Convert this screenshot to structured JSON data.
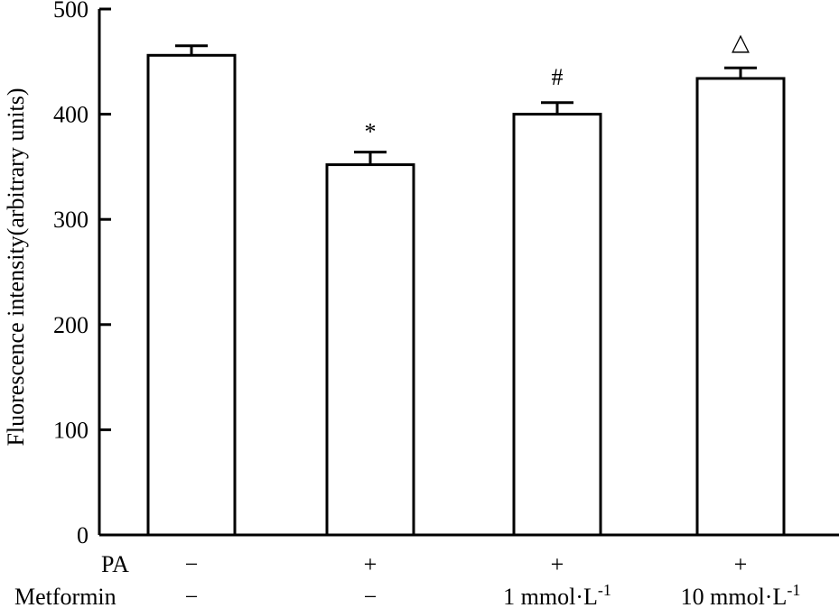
{
  "chart_data": {
    "type": "bar",
    "title": "",
    "xlabel": "",
    "ylabel": "Fluorescence intensity(arbitrary units)",
    "ylim": [
      0,
      500
    ],
    "yticks": [
      0,
      100,
      200,
      300,
      400,
      500
    ],
    "grid": false,
    "values": [
      456,
      352,
      400,
      434
    ],
    "errors": [
      9,
      12,
      11,
      10
    ],
    "significance": [
      "",
      "*",
      "#",
      "△"
    ],
    "conditions": [
      {
        "name": "PA",
        "values": [
          "−",
          "+",
          "+",
          "+"
        ]
      },
      {
        "name": "Metformin",
        "values": [
          "−",
          "−",
          "1 mmol·L",
          "10 mmol·L"
        ],
        "superscripts": [
          "",
          "",
          "-1",
          "-1"
        ]
      }
    ]
  }
}
